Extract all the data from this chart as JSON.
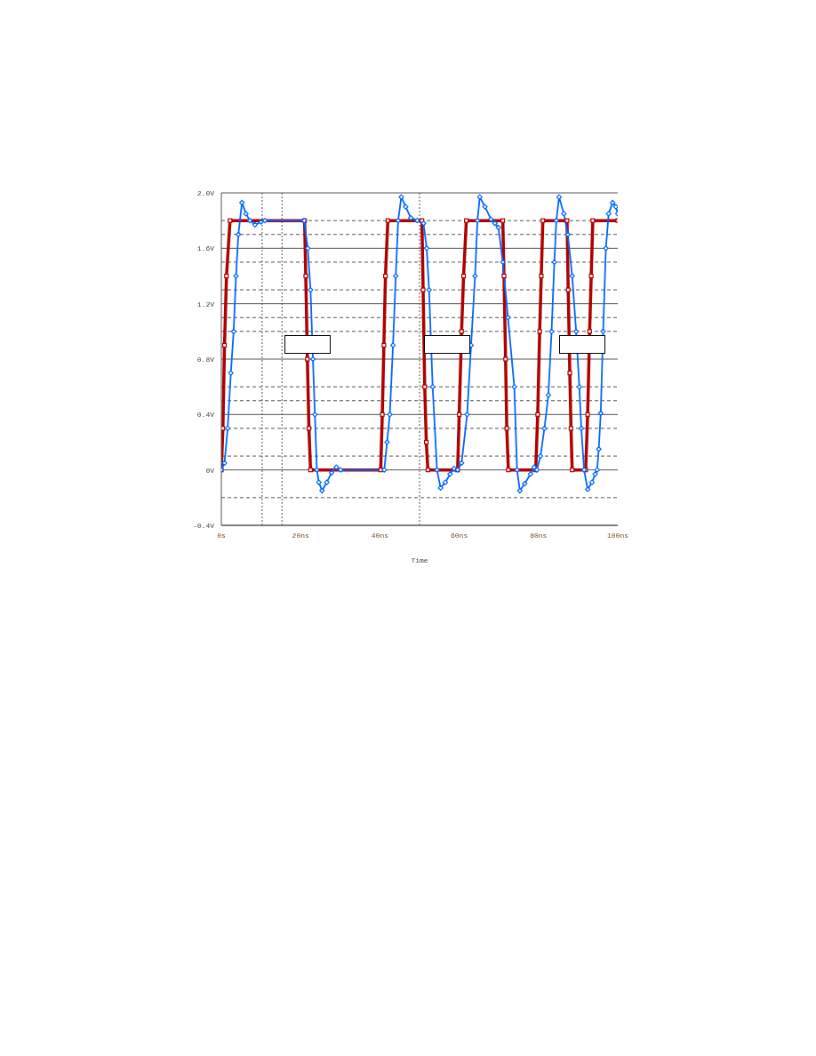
{
  "chart_data": {
    "type": "line",
    "xlabel": "Time",
    "xlim": [
      0,
      100
    ],
    "xticks": [
      {
        "value": 0,
        "label": "0s"
      },
      {
        "value": 20,
        "label": "20ns"
      },
      {
        "value": 40,
        "label": "40ns"
      },
      {
        "value": 60,
        "label": "60ns"
      },
      {
        "value": 80,
        "label": "80ns"
      },
      {
        "value": 100,
        "label": "100ns"
      }
    ],
    "ylim": [
      -0.4,
      2.0
    ],
    "yticks": [
      {
        "value": -0.4,
        "label": "-0.4V"
      },
      {
        "value": 0,
        "label": "0V"
      },
      {
        "value": 0.4,
        "label": "0.4V"
      },
      {
        "value": 0.8,
        "label": "0.8V"
      },
      {
        "value": 1.2,
        "label": "1.2V"
      },
      {
        "value": 1.6,
        "label": "1.6V"
      },
      {
        "value": 2.0,
        "label": "2.0V"
      }
    ],
    "grid": "y",
    "legend": false,
    "line_style": "solid",
    "ref_lines": [
      {
        "axis": "x",
        "value": 10.3,
        "line_style": "dotted",
        "color": "#555555"
      },
      {
        "axis": "x",
        "value": 15.3,
        "line_style": "dotted",
        "color": "#555555"
      },
      {
        "axis": "x",
        "value": 50,
        "line_style": "dotted",
        "color": "#555555"
      },
      {
        "axis": "y",
        "value": 1.8,
        "line_style": "dashed",
        "color": "#555555"
      },
      {
        "axis": "y",
        "value": 1.7,
        "line_style": "dashed",
        "color": "#555555"
      },
      {
        "axis": "y",
        "value": 1.5,
        "line_style": "dashed",
        "color": "#555555"
      },
      {
        "axis": "y",
        "value": 1.3,
        "line_style": "dashed",
        "color": "#555555"
      },
      {
        "axis": "y",
        "value": 1.1,
        "line_style": "dashed",
        "color": "#555555"
      },
      {
        "axis": "y",
        "value": 1.0,
        "line_style": "dashed",
        "color": "#555555"
      },
      {
        "axis": "y",
        "value": 0.6,
        "line_style": "dashed",
        "color": "#555555"
      },
      {
        "axis": "y",
        "value": 0.5,
        "line_style": "dashed",
        "color": "#555555"
      },
      {
        "axis": "y",
        "value": 0.3,
        "line_style": "dashed",
        "color": "#555555"
      },
      {
        "axis": "y",
        "value": 0.1,
        "line_style": "dashed",
        "color": "#555555"
      },
      {
        "axis": "y",
        "value": -0.2,
        "line_style": "dashed",
        "color": "#555555"
      }
    ],
    "series": [
      {
        "color": "#b00000",
        "marker": "square",
        "x": [
          0,
          0.4,
          0.8,
          1.3,
          2.2,
          21.0,
          21.3,
          21.7,
          22.1,
          22.5,
          40.2,
          40.6,
          41.0,
          41.4,
          42.0,
          50.6,
          50.9,
          51.3,
          51.7,
          52.1,
          59.6,
          60.0,
          60.6,
          61.1,
          61.8,
          71.0,
          71.3,
          71.7,
          72.0,
          72.4,
          79.3,
          79.8,
          80.3,
          80.7,
          81.1,
          87.2,
          87.5,
          87.9,
          88.2,
          88.5,
          91.9,
          92.4,
          92.9,
          93.3,
          93.7,
          100
        ],
        "values": [
          0,
          0.3,
          0.9,
          1.4,
          1.8,
          1.8,
          1.4,
          0.8,
          0.3,
          0,
          0,
          0.4,
          0.9,
          1.4,
          1.8,
          1.8,
          1.3,
          0.6,
          0.2,
          0,
          0,
          0.4,
          1.0,
          1.4,
          1.8,
          1.8,
          1.4,
          0.8,
          0.3,
          0,
          0,
          0.4,
          1.0,
          1.4,
          1.8,
          1.8,
          1.3,
          0.7,
          0.3,
          0,
          0,
          0.4,
          1.0,
          1.4,
          1.8,
          1.8
        ]
      },
      {
        "color": "#0066ff",
        "marker": "diamond",
        "x": [
          0,
          0.8,
          1.6,
          2.4,
          3.1,
          3.7,
          4.3,
          5.2,
          6.2,
          7.2,
          8.5,
          10,
          11,
          20.9,
          21.8,
          22.5,
          23.1,
          23.6,
          24.1,
          24.6,
          25.4,
          26.6,
          27.8,
          29,
          30.1,
          41.1,
          41.8,
          42.5,
          43.3,
          44,
          44.6,
          45.4,
          46.5,
          47.8,
          49.4,
          51,
          51.8,
          52.4,
          53.3,
          54.4,
          55.3,
          56.5,
          57.7,
          58.7,
          59.6,
          60.6,
          62,
          63,
          64,
          64.6,
          65.2,
          66.5,
          68,
          69,
          69.9,
          71,
          72.3,
          73.9,
          74.6,
          75.3,
          76.5,
          78,
          78.9,
          79.6,
          80.5,
          81.5,
          82.5,
          83.3,
          84,
          84.5,
          85.2,
          86.4,
          87.4,
          88.5,
          89.5,
          90.3,
          90.8,
          91.5,
          92.4,
          93.5,
          94.3,
          94.8,
          95.2,
          95.7,
          96.3,
          97,
          97.7,
          98.7,
          99.5,
          100
        ],
        "values": [
          0,
          0.05,
          0.3,
          0.7,
          1.0,
          1.4,
          1.7,
          1.93,
          1.85,
          1.8,
          1.77,
          1.79,
          1.8,
          1.8,
          1.6,
          1.3,
          0.8,
          0.4,
          0,
          -0.09,
          -0.15,
          -0.09,
          -0.02,
          0.02,
          0,
          0,
          0.2,
          0.4,
          0.9,
          1.4,
          1.8,
          1.97,
          1.9,
          1.82,
          1.8,
          1.78,
          1.6,
          1.3,
          0.6,
          0,
          -0.13,
          -0.09,
          -0.03,
          0.01,
          0,
          0.05,
          0.4,
          0.9,
          1.4,
          1.8,
          1.97,
          1.9,
          1.81,
          1.78,
          1.75,
          1.5,
          1.1,
          0.6,
          0,
          -0.15,
          -0.1,
          -0.03,
          0.02,
          0,
          0.1,
          0.3,
          0.54,
          1.0,
          1.5,
          1.8,
          1.97,
          1.85,
          1.7,
          1.4,
          1.0,
          0.6,
          0.3,
          0,
          -0.14,
          -0.09,
          -0.03,
          0,
          0.15,
          0.41,
          1.0,
          1.6,
          1.85,
          1.93,
          1.9,
          1.85
        ]
      }
    ]
  }
}
